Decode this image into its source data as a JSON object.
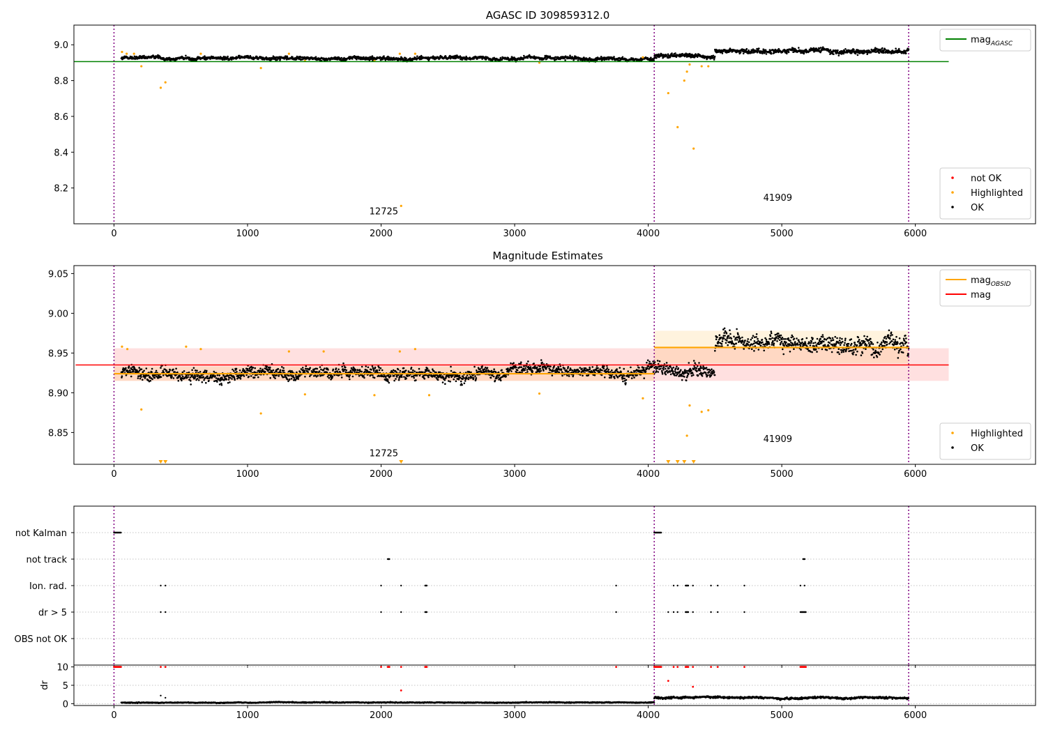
{
  "chart_data": [
    {
      "type": "scatter",
      "title": "AGASC ID 309859312.0",
      "xlim": [
        -300,
        6900
      ],
      "ylim": [
        8.0,
        9.11
      ],
      "xticks": [
        0,
        1000,
        2000,
        3000,
        4000,
        5000,
        6000
      ],
      "yticks": [
        8.2,
        8.4,
        8.6,
        8.8,
        9.0
      ],
      "ytick_labels": [
        "8.2",
        "8.4",
        "8.6",
        "8.8",
        "9.0"
      ],
      "vlines": [
        0,
        4045,
        5950
      ],
      "reference_line": {
        "name": "mag",
        "sub": "AGASC",
        "y": 8.906,
        "x": [
          -300,
          6250
        ],
        "color": "#008000"
      },
      "obsid_labels": [
        {
          "text": "12725",
          "x": 2020,
          "y": 8.052
        },
        {
          "text": "41909",
          "x": 4970,
          "y": 8.128
        }
      ],
      "legends": [
        {
          "position": "top-right",
          "entries": [
            {
              "label": "mag",
              "sub": "AGASC",
              "type": "line",
              "color": "#008000"
            }
          ]
        },
        {
          "position": "bottom-right",
          "entries": [
            {
              "label": "not OK",
              "type": "dot",
              "color": "#ff0000"
            },
            {
              "label": "Highlighted",
              "type": "dot",
              "color": "#ffa500"
            },
            {
              "label": "OK",
              "type": "dot",
              "color": "#000000"
            }
          ]
        }
      ],
      "ok_series": [
        {
          "x0": 55,
          "x1": 4045,
          "base": 8.925,
          "spread": 0.018
        },
        {
          "x0": 4045,
          "x1": 4500,
          "base": 8.935,
          "spread": 0.022
        },
        {
          "x0": 4500,
          "x1": 5950,
          "base": 8.968,
          "spread": 0.025
        }
      ],
      "highlighted": [
        {
          "x": 60,
          "y": 8.96
        },
        {
          "x": 95,
          "y": 8.95
        },
        {
          "x": 150,
          "y": 8.95
        },
        {
          "x": 205,
          "y": 8.88
        },
        {
          "x": 350,
          "y": 8.76
        },
        {
          "x": 385,
          "y": 8.79
        },
        {
          "x": 650,
          "y": 8.95
        },
        {
          "x": 1100,
          "y": 8.87
        },
        {
          "x": 1310,
          "y": 8.95
        },
        {
          "x": 1430,
          "y": 8.91
        },
        {
          "x": 1950,
          "y": 8.91
        },
        {
          "x": 2140,
          "y": 8.95
        },
        {
          "x": 2150,
          "y": 8.1
        },
        {
          "x": 2255,
          "y": 8.95
        },
        {
          "x": 3185,
          "y": 8.9
        },
        {
          "x": 3960,
          "y": 8.93
        },
        {
          "x": 4150,
          "y": 8.73
        },
        {
          "x": 4220,
          "y": 8.54
        },
        {
          "x": 4270,
          "y": 8.8
        },
        {
          "x": 4290,
          "y": 8.85
        },
        {
          "x": 4310,
          "y": 8.89
        },
        {
          "x": 4340,
          "y": 8.42
        },
        {
          "x": 4400,
          "y": 8.88
        },
        {
          "x": 4450,
          "y": 8.88
        }
      ]
    },
    {
      "type": "scatter",
      "title": "Magnitude Estimates",
      "xlim": [
        -300,
        6900
      ],
      "ylim": [
        8.81,
        9.06
      ],
      "xticks": [
        0,
        1000,
        2000,
        3000,
        4000,
        5000,
        6000
      ],
      "yticks": [
        8.85,
        8.9,
        8.95,
        9.0,
        9.05
      ],
      "ytick_labels": [
        "8.85",
        "8.90",
        "8.95",
        "9.00",
        "9.05"
      ],
      "vlines": [
        0,
        4045,
        5950
      ],
      "mag_line": {
        "name": "mag",
        "y": 8.935,
        "band": [
          8.915,
          8.956
        ],
        "x": [
          0,
          6250
        ],
        "color": "#ff0000"
      },
      "obsid_mags": [
        {
          "name": "mag",
          "sub": "OBSID",
          "x": [
            0,
            4045
          ],
          "y": 8.924,
          "band": [
            8.915,
            8.933
          ],
          "color": "#ffa500"
        },
        {
          "name": "mag",
          "sub": "OBSID",
          "x": [
            4045,
            5950
          ],
          "y": 8.957,
          "band": [
            8.937,
            8.978
          ],
          "color": "#ffa500"
        }
      ],
      "obsid_labels": [
        {
          "text": "12725",
          "x": 2020,
          "y": 8.82
        },
        {
          "text": "41909",
          "x": 4970,
          "y": 8.838
        }
      ],
      "legends": [
        {
          "position": "top-right",
          "entries": [
            {
              "label": "mag",
              "sub": "OBSID",
              "type": "line",
              "color": "#ffa500"
            },
            {
              "label": "mag",
              "type": "line",
              "color": "#ff0000"
            }
          ]
        },
        {
          "position": "bottom-right",
          "entries": [
            {
              "label": "Highlighted",
              "type": "dot",
              "color": "#ffa500"
            },
            {
              "label": "OK",
              "type": "dot",
              "color": "#000000"
            }
          ]
        }
      ],
      "ok_series": [
        {
          "x0": 55,
          "x1": 4045,
          "base": 8.924,
          "spread": 0.014
        },
        {
          "x0": 4045,
          "x1": 4500,
          "base": 8.932,
          "spread": 0.016
        },
        {
          "x0": 4500,
          "x1": 5950,
          "base": 8.962,
          "spread": 0.02
        }
      ],
      "highlighted": [
        {
          "x": 60,
          "y": 8.958
        },
        {
          "x": 100,
          "y": 8.955
        },
        {
          "x": 205,
          "y": 8.879
        },
        {
          "x": 540,
          "y": 8.958
        },
        {
          "x": 650,
          "y": 8.955
        },
        {
          "x": 1100,
          "y": 8.874
        },
        {
          "x": 1310,
          "y": 8.952
        },
        {
          "x": 1430,
          "y": 8.898
        },
        {
          "x": 1570,
          "y": 8.952
        },
        {
          "x": 1950,
          "y": 8.897
        },
        {
          "x": 2140,
          "y": 8.952
        },
        {
          "x": 2255,
          "y": 8.955
        },
        {
          "x": 2360,
          "y": 8.897
        },
        {
          "x": 3185,
          "y": 8.899
        },
        {
          "x": 3960,
          "y": 8.893
        },
        {
          "x": 4310,
          "y": 8.884
        },
        {
          "x": 4290,
          "y": 8.846
        },
        {
          "x": 4400,
          "y": 8.876
        },
        {
          "x": 4450,
          "y": 8.878
        }
      ],
      "clipped_low": [
        350,
        385,
        2150,
        4150,
        4220,
        4270,
        4340
      ]
    },
    {
      "type": "scatter",
      "xlim": [
        -300,
        6900
      ],
      "xticks": [
        0,
        1000,
        2000,
        3000,
        4000,
        5000,
        6000
      ],
      "vlines": [
        0,
        4045,
        5950
      ],
      "flag_rows": [
        "not Kalman",
        "not track",
        "Ion. rad.",
        "dr > 5",
        "OBS not OK"
      ],
      "flags": {
        "not Kalman": [
          {
            "x0": 0,
            "x1": 55
          },
          {
            "x0": 4045,
            "x1": 4100
          }
        ],
        "not track": [
          {
            "x0": 2050,
            "x1": 2065
          },
          {
            "x0": 5160,
            "x1": 5175
          }
        ],
        "Ion. rad.": [
          {
            "x0": 350,
            "x1": 352
          },
          {
            "x0": 385,
            "x1": 387
          },
          {
            "x0": 2000,
            "x1": 2002
          },
          {
            "x0": 2150,
            "x1": 2152
          },
          {
            "x0": 2330,
            "x1": 2345
          },
          {
            "x0": 3760,
            "x1": 3762
          },
          {
            "x0": 4190,
            "x1": 4192
          },
          {
            "x0": 4220,
            "x1": 4222
          },
          {
            "x0": 4280,
            "x1": 4300
          },
          {
            "x0": 4335,
            "x1": 4337
          },
          {
            "x0": 4470,
            "x1": 4472
          },
          {
            "x0": 4520,
            "x1": 4522
          },
          {
            "x0": 4720,
            "x1": 4722
          },
          {
            "x0": 5140,
            "x1": 5142
          },
          {
            "x0": 5170,
            "x1": 5172
          }
        ],
        "dr > 5": [
          {
            "x0": 350,
            "x1": 352
          },
          {
            "x0": 385,
            "x1": 387
          },
          {
            "x0": 2000,
            "x1": 2002
          },
          {
            "x0": 2150,
            "x1": 2152
          },
          {
            "x0": 2330,
            "x1": 2345
          },
          {
            "x0": 3760,
            "x1": 3762
          },
          {
            "x0": 4150,
            "x1": 4152
          },
          {
            "x0": 4190,
            "x1": 4192
          },
          {
            "x0": 4220,
            "x1": 4222
          },
          {
            "x0": 4280,
            "x1": 4300
          },
          {
            "x0": 4335,
            "x1": 4337
          },
          {
            "x0": 4470,
            "x1": 4472
          },
          {
            "x0": 4520,
            "x1": 4522
          },
          {
            "x0": 4720,
            "x1": 4722
          },
          {
            "x0": 5140,
            "x1": 5180
          }
        ],
        "OBS not OK": []
      }
    },
    {
      "type": "scatter",
      "ylabel": "dr",
      "xlim": [
        -300,
        6900
      ],
      "ylim": [
        -0.5,
        10.5
      ],
      "xticks": [
        0,
        1000,
        2000,
        3000,
        4000,
        5000,
        6000
      ],
      "yticks": [
        0,
        5,
        10
      ],
      "ytick_labels": [
        "0",
        "5",
        "10"
      ],
      "vlines": [
        0,
        4045,
        5950
      ],
      "ok_series": [
        {
          "x0": 55,
          "x1": 4045,
          "base": 0.3,
          "spread": 0.2
        },
        {
          "x0": 4045,
          "x1": 5950,
          "base": 1.6,
          "spread": 0.5
        }
      ],
      "not_ok": [
        {
          "x0": 0,
          "x1": 55,
          "y": 10
        },
        {
          "x0": 350,
          "x1": 352,
          "y": 10
        },
        {
          "x0": 385,
          "x1": 387,
          "y": 10
        },
        {
          "x0": 2000,
          "x1": 2002,
          "y": 10
        },
        {
          "x0": 2050,
          "x1": 2065,
          "y": 10
        },
        {
          "x0": 2150,
          "x1": 2152,
          "y": 10
        },
        {
          "x0": 2330,
          "x1": 2345,
          "y": 10
        },
        {
          "x0": 3760,
          "x1": 3762,
          "y": 10
        },
        {
          "x0": 4045,
          "x1": 4100,
          "y": 10
        },
        {
          "x0": 4190,
          "x1": 4192,
          "y": 10
        },
        {
          "x0": 4220,
          "x1": 4222,
          "y": 10
        },
        {
          "x0": 4280,
          "x1": 4300,
          "y": 10
        },
        {
          "x0": 4335,
          "x1": 4337,
          "y": 10
        },
        {
          "x0": 4470,
          "x1": 4472,
          "y": 10
        },
        {
          "x0": 4520,
          "x1": 4522,
          "y": 10
        },
        {
          "x0": 4720,
          "x1": 4722,
          "y": 10
        },
        {
          "x0": 5140,
          "x1": 5180,
          "y": 10
        },
        {
          "x0": 2150,
          "x1": 2152,
          "y": 3.6
        },
        {
          "x0": 4150,
          "x1": 4152,
          "y": 6.2
        },
        {
          "x0": 4335,
          "x1": 4337,
          "y": 4.6
        }
      ],
      "extra_ok": [
        {
          "x": 350,
          "y": 2.2
        },
        {
          "x": 385,
          "y": 1.6
        }
      ]
    }
  ]
}
